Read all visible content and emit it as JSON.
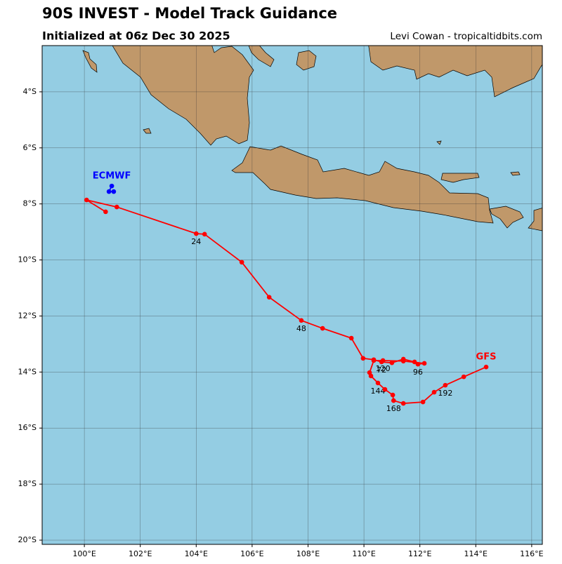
{
  "header": {
    "title": "90S INVEST - Model Track Guidance",
    "subtitle": "Initialized at 06z Dec 30 2025",
    "credit": "Levi Cowan - tropicaltidbits.com"
  },
  "map": {
    "xlim": [
      98.49,
      116.38
    ],
    "ylim": [
      -2.35,
      -20.15
    ],
    "grid": true,
    "ocean_color": "#94cde3",
    "land_color": "#c0986a",
    "xticks": [
      {
        "value": 100,
        "label": "100°E"
      },
      {
        "value": 102,
        "label": "102°E"
      },
      {
        "value": 104,
        "label": "104°E"
      },
      {
        "value": 106,
        "label": "106°E"
      },
      {
        "value": 108,
        "label": "108°E"
      },
      {
        "value": 110,
        "label": "110°E"
      },
      {
        "value": 112,
        "label": "112°E"
      },
      {
        "value": 114,
        "label": "114°E"
      },
      {
        "value": 116,
        "label": "116°E"
      }
    ],
    "yticks": [
      {
        "value": -4,
        "label": "4°S"
      },
      {
        "value": -6,
        "label": "6°S"
      },
      {
        "value": -8,
        "label": "8°S"
      },
      {
        "value": -10,
        "label": "10°S"
      },
      {
        "value": -12,
        "label": "12°S"
      },
      {
        "value": -14,
        "label": "14°S"
      },
      {
        "value": -16,
        "label": "16°S"
      },
      {
        "value": -18,
        "label": "18°S"
      },
      {
        "value": -20,
        "label": "20°S"
      }
    ],
    "tracks": [
      {
        "name": "GFS",
        "color": "#ff0000",
        "lon": [
          100.76,
          100.08,
          101.16,
          104.0,
          104.3,
          105.63,
          106.61,
          107.76,
          108.52,
          109.55,
          109.97,
          110.35,
          110.63,
          111.0,
          111.41,
          111.81,
          111.93,
          112.16,
          111.41,
          110.68,
          110.35,
          110.2,
          110.25,
          110.5,
          110.75,
          111.03,
          111.06,
          111.41,
          112.11,
          112.51,
          112.91,
          113.57,
          114.37
        ],
        "lat": [
          -8.28,
          -7.86,
          -8.11,
          -9.06,
          -9.08,
          -10.08,
          -11.33,
          -12.16,
          -12.44,
          -12.79,
          -13.51,
          -13.56,
          -13.64,
          -13.67,
          -13.54,
          -13.64,
          -13.72,
          -13.69,
          -13.61,
          -13.59,
          -13.59,
          -14.02,
          -14.14,
          -14.39,
          -14.62,
          -14.82,
          -15.02,
          -15.12,
          -15.07,
          -14.72,
          -14.47,
          -14.17,
          -13.82
        ],
        "hours": [
          null,
          null,
          null,
          24,
          null,
          null,
          null,
          48,
          null,
          null,
          null,
          null,
          72,
          null,
          null,
          null,
          96,
          null,
          null,
          120,
          null,
          null,
          null,
          144,
          null,
          null,
          168,
          null,
          null,
          null,
          192,
          null,
          null
        ]
      },
      {
        "name": "ECMWF",
        "color": "#0000ff",
        "lon": [
          100.98,
          100.88,
          101.05
        ],
        "lat": [
          -7.36,
          -7.56,
          -7.56
        ]
      }
    ]
  }
}
